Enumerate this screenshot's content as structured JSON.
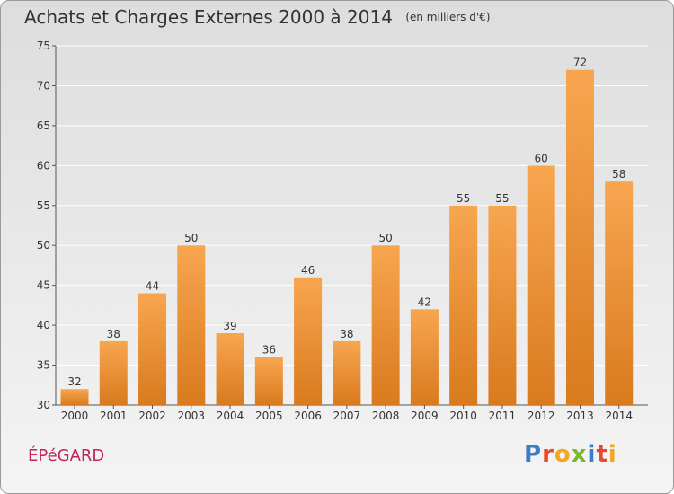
{
  "header": {
    "title": "Achats et Charges Externes 2000 à 2014",
    "unit": "(en milliers d'€)"
  },
  "footer": {
    "commune": "ÉPéGARD",
    "logo": {
      "text": "Proxiti",
      "letters": [
        {
          "ch": "P",
          "color": "#3a7dc9"
        },
        {
          "ch": "r",
          "color": "#e8482f"
        },
        {
          "ch": "o",
          "color": "#f5a623"
        },
        {
          "ch": "x",
          "color": "#7ab929"
        },
        {
          "ch": "i",
          "color": "#3a7dc9"
        },
        {
          "ch": "t",
          "color": "#e8482f"
        },
        {
          "ch": "i",
          "color": "#f5a623"
        }
      ]
    }
  },
  "chart_data": {
    "type": "bar",
    "title": "Achats et Charges Externes 2000 à 2014",
    "subtitle": "(en milliers d'€)",
    "categories": [
      "2000",
      "2001",
      "2002",
      "2003",
      "2004",
      "2005",
      "2006",
      "2007",
      "2008",
      "2009",
      "2010",
      "2011",
      "2012",
      "2013",
      "2014"
    ],
    "values": [
      32,
      38,
      44,
      50,
      39,
      36,
      46,
      38,
      50,
      42,
      55,
      55,
      60,
      72,
      58
    ],
    "ylim": [
      30,
      75
    ],
    "yticks": [
      30,
      35,
      40,
      45,
      50,
      55,
      60,
      65,
      70,
      75
    ],
    "grid": true,
    "colors": {
      "bar_light": "#f7a650",
      "bar_dark": "#d97a1e",
      "grid": "#ffffff",
      "axis": "#555555"
    }
  }
}
